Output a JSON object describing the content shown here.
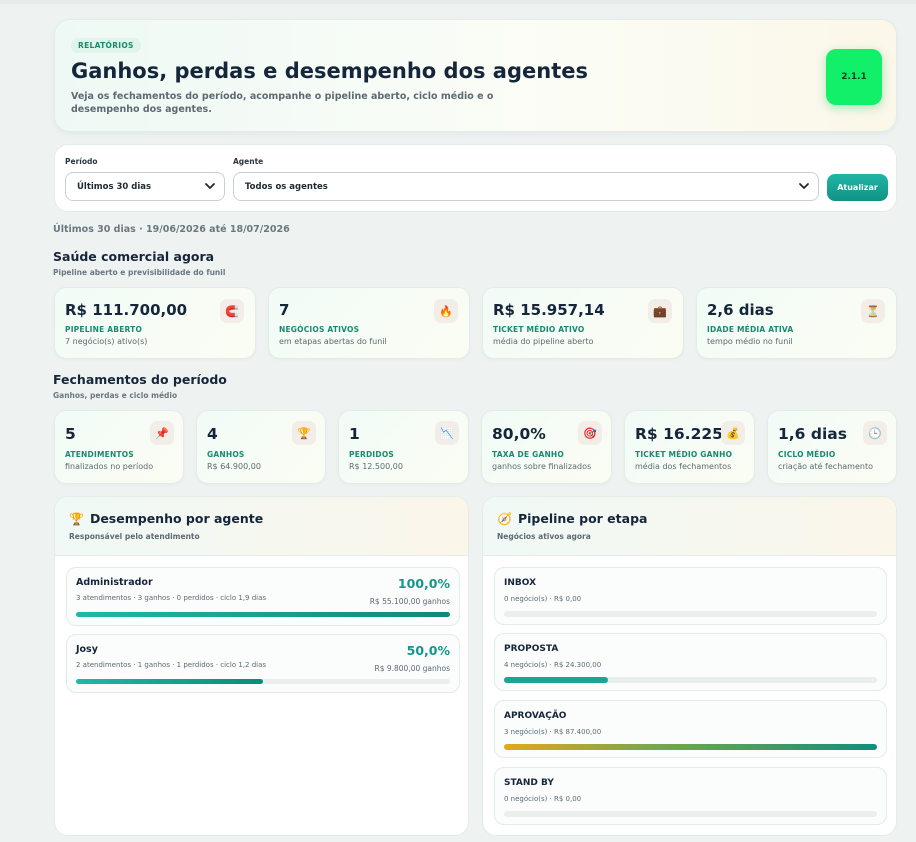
{
  "header": {
    "tag": "RELATÓRIOS",
    "title": "Ganhos, perdas e desempenho dos agentes",
    "subtitle": "Veja os fechamentos do período, acompanhe o pipeline aberto, ciclo médio e o desempenho dos agentes.",
    "version": "2.1.1"
  },
  "filters": {
    "period_label": "Período",
    "period_value": "Últimos 30 dias",
    "agent_label": "Agente",
    "agent_value": "Todos os agentes",
    "refresh_label": "Atualizar"
  },
  "range_text": "Últimos 30 dias · 19/06/2026 até 18/07/2026",
  "health": {
    "title": "Saúde comercial agora",
    "subtitle": "Pipeline aberto e previsibilidade do funil",
    "cards": [
      {
        "value": "R$ 111.700,00",
        "caption": "PIPELINE ABERTO",
        "desc": "7 negócio(s) ativo(s)",
        "icon": "magnet-icon",
        "glyph": "🧲"
      },
      {
        "value": "7",
        "caption": "NEGÓCIOS ATIVOS",
        "desc": "em etapas abertas do funil",
        "icon": "fire-icon",
        "glyph": "🔥"
      },
      {
        "value": "R$ 15.957,14",
        "caption": "TICKET MÉDIO ATIVO",
        "desc": "média do pipeline aberto",
        "icon": "briefcase-icon",
        "glyph": "💼"
      },
      {
        "value": "2,6 dias",
        "caption": "IDADE MÉDIA ATIVA",
        "desc": "tempo médio no funil",
        "icon": "hourglass-icon",
        "glyph": "⏳"
      }
    ]
  },
  "closings": {
    "title": "Fechamentos do período",
    "subtitle": "Ganhos, perdas e ciclo médio",
    "cards": [
      {
        "value": "5",
        "caption": "ATENDIMENTOS",
        "desc": "finalizados no período",
        "icon": "pushpin-icon",
        "glyph": "📌"
      },
      {
        "value": "4",
        "caption": "GANHOS",
        "desc": "R$ 64.900,00",
        "icon": "trophy-icon",
        "glyph": "🏆"
      },
      {
        "value": "1",
        "caption": "PERDIDOS",
        "desc": "R$ 12.500,00",
        "icon": "chart-down-icon",
        "glyph": "📉"
      },
      {
        "value": "80,0%",
        "caption": "TAXA DE GANHO",
        "desc": "ganhos sobre finalizados",
        "icon": "target-icon",
        "glyph": "🎯"
      },
      {
        "value": "R$ 16.225,",
        "caption": "TICKET MÉDIO GANHO",
        "desc": "média dos fechamentos",
        "icon": "money-bag-icon",
        "glyph": "💰"
      },
      {
        "value": "1,6 dias",
        "caption": "CICLO MÉDIO",
        "desc": "criação até fechamento",
        "icon": "clock-icon",
        "glyph": "🕒"
      }
    ]
  },
  "agents_panel": {
    "title": "Desempenho por agente",
    "subtitle": "Responsável pelo atendimento",
    "icon": "trophy-icon",
    "glyph": "🏆",
    "rows": [
      {
        "name": "Administrador",
        "meta": "3 atendimentos · 3 ganhos · 0 perdidos · ciclo 1,9 dias",
        "pct": "100,0%",
        "won": "R$ 55.100,00 ganhos",
        "fill": 1.0
      },
      {
        "name": "Josy",
        "meta": "2 atendimentos · 1 ganhos · 1 perdidos · ciclo 1,2 dias",
        "pct": "50,0%",
        "won": "R$ 9.800,00 ganhos",
        "fill": 0.5
      }
    ]
  },
  "pipeline_panel": {
    "title": "Pipeline por etapa",
    "subtitle": "Negócios ativos agora",
    "icon": "compass-icon",
    "glyph": "🧭",
    "rows": [
      {
        "name": "INBOX",
        "meta": "0 negócio(s) · R$ 0,00",
        "fill": 0.0,
        "color": "#1ba393"
      },
      {
        "name": "PROPOSTA",
        "meta": "4 negócio(s) · R$ 24.300,00",
        "fill": 0.28,
        "color": "#1ba393"
      },
      {
        "name": "APROVAÇÃO",
        "meta": "3 negócio(s) · R$ 87.400,00",
        "fill": 1.0,
        "color": "gradient"
      },
      {
        "name": "STAND BY",
        "meta": "0 negócio(s) · R$ 0,00",
        "fill": 0.0,
        "color": "#1ba393"
      }
    ]
  }
}
